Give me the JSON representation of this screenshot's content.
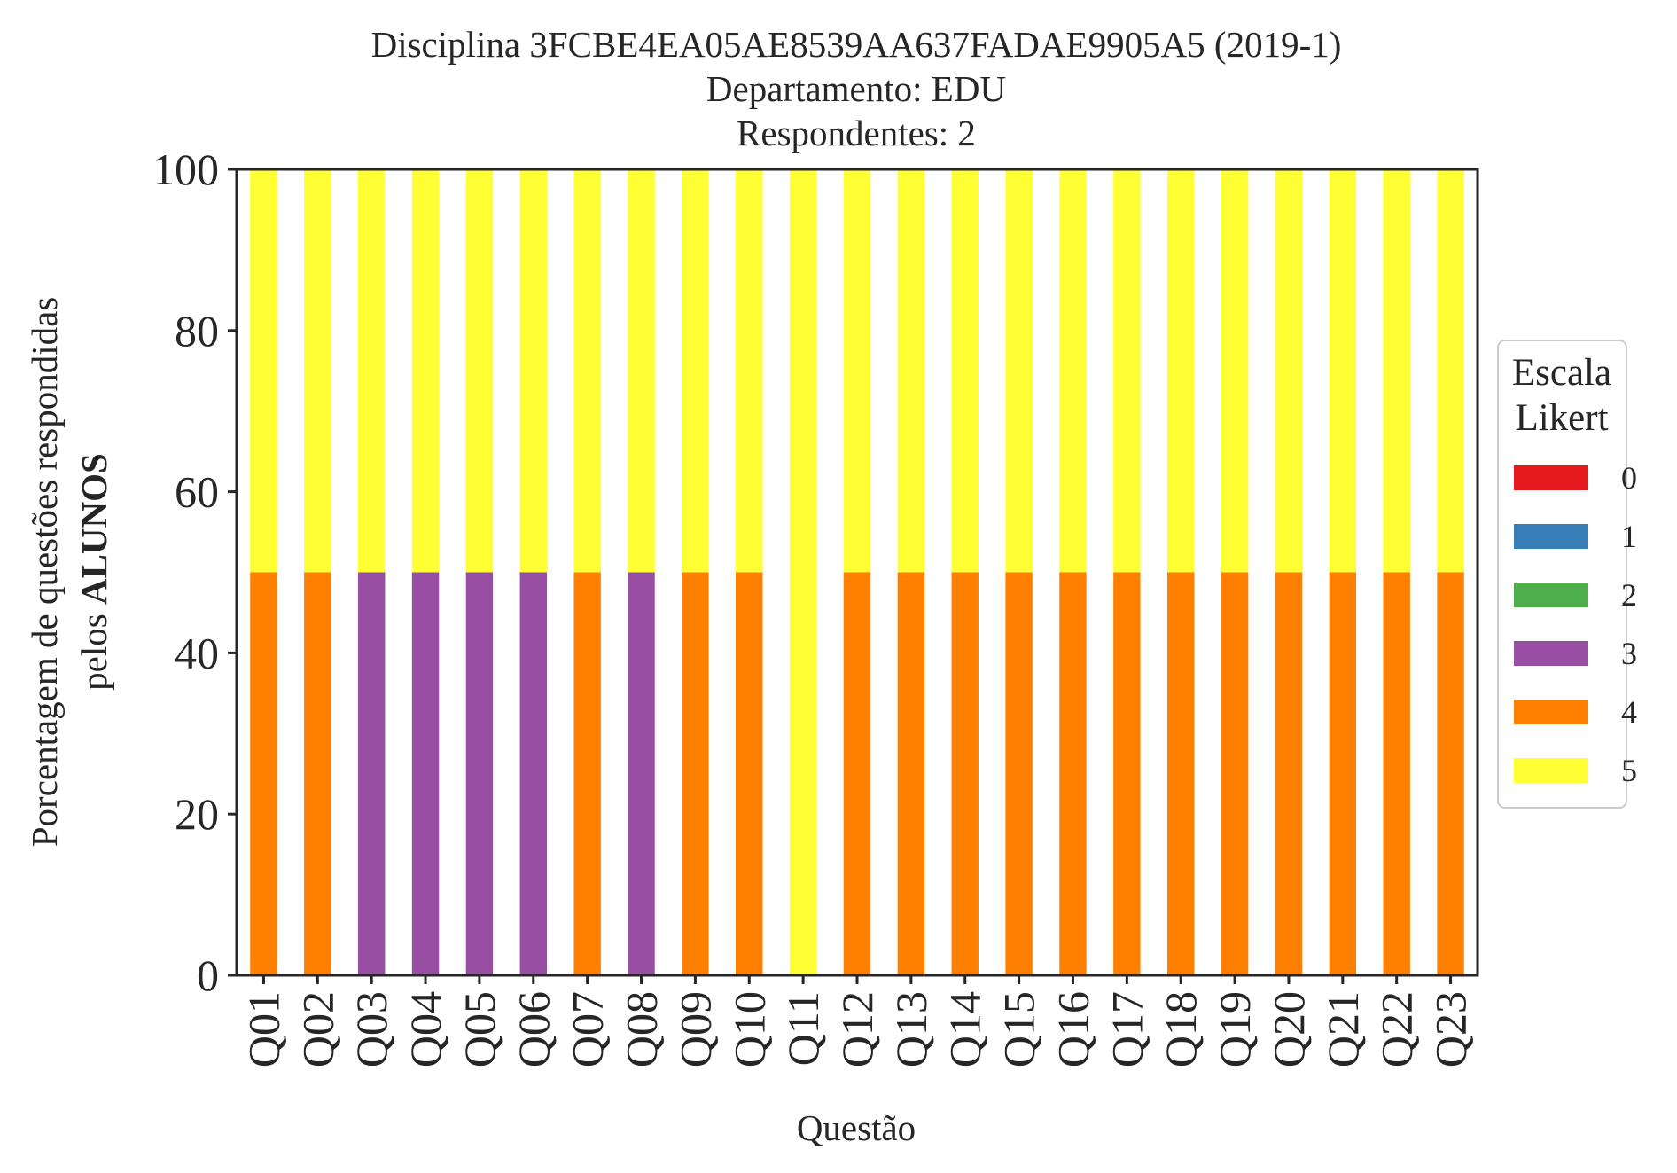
{
  "chart_data": {
    "type": "bar",
    "stacked": true,
    "title_lines": [
      "Disciplina 3FCBE4EA05AE8539AA637FADAE9905A5 (2019-1)",
      "Departamento: EDU",
      "Respondentes: 2"
    ],
    "xlabel": "Questão",
    "ylabel_line1": "Porcentagem de questões respondidas",
    "ylabel_line2_prefix": "pelos ",
    "ylabel_line2_bold": "ALUNOS",
    "ylim": [
      0,
      100
    ],
    "yticks": [
      0,
      20,
      40,
      60,
      80,
      100
    ],
    "grid": false,
    "legend_position": "right",
    "legend_title_lines": [
      "Escala",
      "Likert"
    ],
    "categories": [
      "Q01",
      "Q02",
      "Q03",
      "Q04",
      "Q05",
      "Q06",
      "Q07",
      "Q08",
      "Q09",
      "Q10",
      "Q11",
      "Q12",
      "Q13",
      "Q14",
      "Q15",
      "Q16",
      "Q17",
      "Q18",
      "Q19",
      "Q20",
      "Q21",
      "Q22",
      "Q23"
    ],
    "series": [
      {
        "name": "0",
        "color": "#e41a1c",
        "values": [
          0,
          0,
          0,
          0,
          0,
          0,
          0,
          0,
          0,
          0,
          0,
          0,
          0,
          0,
          0,
          0,
          0,
          0,
          0,
          0,
          0,
          0,
          0
        ]
      },
      {
        "name": "1",
        "color": "#377eb8",
        "values": [
          0,
          0,
          0,
          0,
          0,
          0,
          0,
          0,
          0,
          0,
          0,
          0,
          0,
          0,
          0,
          0,
          0,
          0,
          0,
          0,
          0,
          0,
          0
        ]
      },
      {
        "name": "2",
        "color": "#4daf4a",
        "values": [
          0,
          0,
          0,
          0,
          0,
          0,
          0,
          0,
          0,
          0,
          0,
          0,
          0,
          0,
          0,
          0,
          0,
          0,
          0,
          0,
          0,
          0,
          0
        ]
      },
      {
        "name": "3",
        "color": "#984ea3",
        "values": [
          0,
          0,
          50,
          50,
          50,
          50,
          0,
          50,
          0,
          0,
          0,
          0,
          0,
          0,
          0,
          0,
          0,
          0,
          0,
          0,
          0,
          0,
          0
        ]
      },
      {
        "name": "4",
        "color": "#ff7f00",
        "values": [
          50,
          50,
          0,
          0,
          0,
          0,
          50,
          0,
          50,
          50,
          0,
          50,
          50,
          50,
          50,
          50,
          50,
          50,
          50,
          50,
          50,
          50,
          50
        ]
      },
      {
        "name": "5",
        "color": "#ffff33",
        "values": [
          50,
          50,
          50,
          50,
          50,
          50,
          50,
          50,
          50,
          50,
          100,
          50,
          50,
          50,
          50,
          50,
          50,
          50,
          50,
          50,
          50,
          50,
          50
        ]
      }
    ]
  }
}
